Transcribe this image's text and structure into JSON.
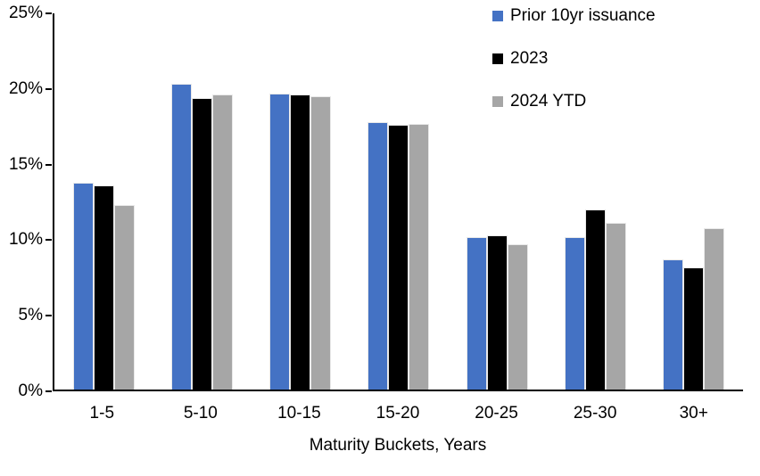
{
  "chart_data": {
    "type": "bar",
    "categories": [
      "1-5",
      "5-10",
      "10-15",
      "15-20",
      "20-25",
      "25-30",
      "30+"
    ],
    "series": [
      {
        "name": "Prior 10yr issuance",
        "color": "#4472C4",
        "values": [
          13.7,
          20.2,
          19.6,
          17.7,
          10.1,
          10.1,
          8.6
        ]
      },
      {
        "name": "2023",
        "color": "#000000",
        "values": [
          13.5,
          19.3,
          19.5,
          17.5,
          10.2,
          11.9,
          8.1
        ]
      },
      {
        "name": "2024 YTD",
        "color": "#A6A6A6",
        "values": [
          12.2,
          19.5,
          19.4,
          17.6,
          9.6,
          11.0,
          10.7
        ]
      }
    ],
    "title": "",
    "xlabel": "Maturity Buckets, Years",
    "ylabel": "",
    "ylim": [
      0,
      25
    ],
    "ytick_step": 5,
    "ytick_suffix": "%",
    "grid": false,
    "legend_position": "top-right",
    "axis_color": "#000000",
    "background_color": "#FFFFFF"
  }
}
